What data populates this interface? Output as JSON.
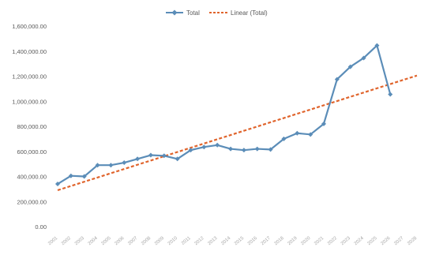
{
  "chart_data": {
    "type": "line",
    "title": "",
    "xlabel": "",
    "ylabel": "",
    "ylim": [
      0,
      1600000
    ],
    "y_ticks": [
      0,
      200000,
      400000,
      600000,
      800000,
      1000000,
      1200000,
      1400000,
      1600000
    ],
    "y_tick_labels": [
      "0.00",
      "200,000.00",
      "400,000.00",
      "600,000.00",
      "800,000.00",
      "1,000,000.00",
      "1,200,000.00",
      "1,400,000.00",
      "1,600,000.00"
    ],
    "grid": false,
    "legend_position": "top-center",
    "categories": [
      "2001",
      "2002",
      "2003",
      "2004",
      "2005",
      "2006",
      "2007",
      "2008",
      "2009",
      "2010",
      "2011",
      "2012",
      "2013",
      "2014",
      "2015",
      "2016",
      "2017",
      "2018",
      "2019",
      "2020",
      "2021",
      "2022",
      "2023",
      "2024",
      "2025",
      "2026",
      "2027",
      "2028"
    ],
    "x_tick_labels": [
      "2001",
      "2002",
      "2003",
      "2004",
      "2005",
      "2006",
      "2007",
      "2008",
      "2009",
      "2010",
      "2011",
      "2012",
      "2013",
      "2014",
      "2015",
      "2016",
      "2017",
      "2018",
      "2019",
      "2020",
      "2021",
      "2022",
      "2023",
      "2024",
      "2025",
      "2026",
      "2027",
      "2028"
    ],
    "series": [
      {
        "name": "Total",
        "color": "#5b8db8",
        "values": [
          340000,
          405000,
          400000,
          490000,
          490000,
          510000,
          540000,
          570000,
          565000,
          540000,
          610000,
          635000,
          650000,
          620000,
          610000,
          620000,
          615000,
          700000,
          745000,
          735000,
          820000,
          1175000,
          1275000,
          1345000,
          1445000,
          1055000,
          null,
          null
        ]
      }
    ],
    "trendline": {
      "name": "Linear (Total)",
      "color": "#e0642c",
      "start_value": 290000,
      "end_value": 1205000
    }
  }
}
